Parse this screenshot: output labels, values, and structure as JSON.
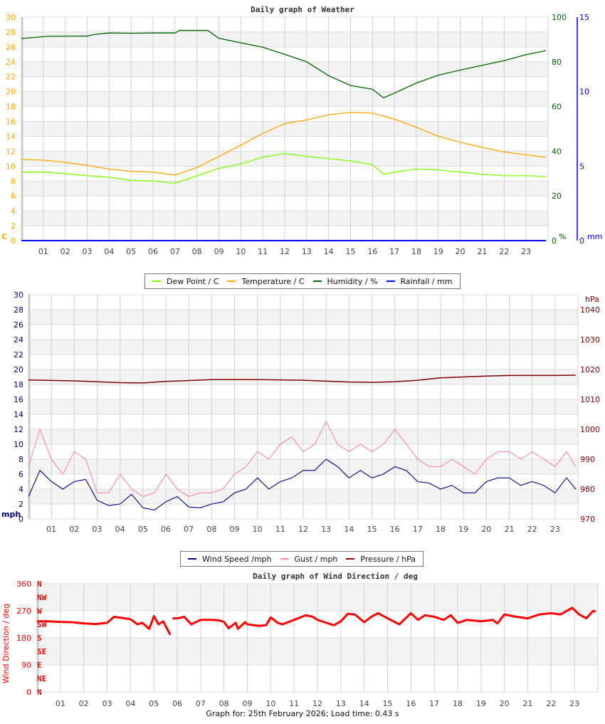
{
  "chart_data": [
    {
      "type": "line",
      "title": "Daily graph of Weather",
      "x_ticks": [
        "01",
        "02",
        "03",
        "04",
        "05",
        "06",
        "07",
        "08",
        "09",
        "10",
        "11",
        "12",
        "13",
        "14",
        "15",
        "16",
        "17",
        "18",
        "19",
        "20",
        "21",
        "22",
        "23"
      ],
      "xlim": [
        0,
        24
      ],
      "grid": true,
      "axes": {
        "left": {
          "unit": "C",
          "ylim": [
            0,
            30
          ],
          "ticks": [
            "0",
            "2",
            "4",
            "6",
            "8",
            "10",
            "12",
            "14",
            "16",
            "18",
            "20",
            "22",
            "24",
            "26",
            "28",
            "30"
          ],
          "color": "#ffa500"
        },
        "right": {
          "unit": "%",
          "ylim": [
            0,
            100
          ],
          "ticks": [
            "0",
            "20",
            "40",
            "60",
            "80",
            "100"
          ],
          "color": "#006400"
        },
        "right2": {
          "unit": "mm",
          "ylim": [
            0,
            15
          ],
          "ticks": [
            "0",
            "5",
            "10",
            "15"
          ],
          "color": "#0000ff"
        }
      },
      "legend": {
        "placement": "bottom",
        "entries": [
          "Dew Point / C",
          "Temperature / C",
          "Humidity / %",
          "Rainfall / mm"
        ]
      },
      "series": [
        {
          "name": "Dew Point / C",
          "axis": "left",
          "color": "#7cfc00",
          "x": [
            0,
            1,
            2,
            3,
            4,
            5,
            6,
            7,
            8,
            9,
            10,
            11,
            12,
            13,
            14,
            15,
            16,
            16.5,
            17,
            18,
            19,
            20,
            21,
            22,
            23,
            23.9
          ],
          "y": [
            9.2,
            9.2,
            9.0,
            8.7,
            8.5,
            8.1,
            8.0,
            7.7,
            8.7,
            9.7,
            10.3,
            11.2,
            11.7,
            11.3,
            11.0,
            10.7,
            10.2,
            8.9,
            9.2,
            9.6,
            9.5,
            9.2,
            8.9,
            8.7,
            8.7,
            8.6
          ]
        },
        {
          "name": "Temperature / C",
          "axis": "left",
          "color": "#ffa500",
          "x": [
            0,
            1,
            2,
            3,
            4,
            5,
            6,
            7,
            8,
            9,
            10,
            11,
            12,
            13,
            14,
            15,
            16,
            17,
            18,
            19,
            20,
            21,
            22,
            23,
            23.9
          ],
          "y": [
            10.9,
            10.8,
            10.5,
            10.1,
            9.6,
            9.3,
            9.2,
            8.8,
            9.8,
            11.3,
            12.8,
            14.4,
            15.7,
            16.2,
            16.9,
            17.2,
            17.1,
            16.3,
            15.2,
            14.0,
            13.2,
            12.5,
            11.9,
            11.5,
            11.2
          ]
        },
        {
          "name": "Humidity / %",
          "axis": "right",
          "color": "#006400",
          "x": [
            0,
            1.2,
            3,
            3.3,
            4,
            5,
            6,
            7,
            7.2,
            8.5,
            9,
            10,
            11,
            12,
            13,
            14,
            15,
            16,
            16.5,
            17,
            18,
            19,
            20,
            21,
            22,
            23,
            23.9
          ],
          "y": [
            90.4,
            91.4,
            91.5,
            92.2,
            92.9,
            92.8,
            92.9,
            92.9,
            94.0,
            94.0,
            90.5,
            88.5,
            86.5,
            83.3,
            80.0,
            73.8,
            69.4,
            67.7,
            63.9,
            66.0,
            70.5,
            74.0,
            76.3,
            78.4,
            80.5,
            83.2,
            85.0
          ]
        },
        {
          "name": "Rainfall / mm",
          "axis": "right2",
          "color": "#0000ff",
          "x": [
            0,
            23.9
          ],
          "y": [
            0,
            0
          ]
        }
      ]
    },
    {
      "type": "line",
      "title": "",
      "x_ticks": [
        "01",
        "02",
        "03",
        "04",
        "05",
        "06",
        "07",
        "08",
        "09",
        "10",
        "11",
        "12",
        "13",
        "14",
        "15",
        "16",
        "17",
        "18",
        "19",
        "20",
        "21",
        "22",
        "23"
      ],
      "xlim": [
        0,
        24
      ],
      "grid": true,
      "axes": {
        "left": {
          "unit": "mph",
          "ylim": [
            0,
            30
          ],
          "ticks": [
            "0",
            "2",
            "4",
            "6",
            "8",
            "10",
            "12",
            "14",
            "16",
            "18",
            "20",
            "22",
            "24",
            "26",
            "28",
            "30"
          ],
          "color": "#000080"
        },
        "right": {
          "unit": "hPa",
          "ylim": [
            970,
            1045
          ],
          "ticks": [
            "970",
            "980",
            "990",
            "1000",
            "1010",
            "1020",
            "1030",
            "1040"
          ],
          "color": "#800000"
        }
      },
      "legend": {
        "placement": "bottom",
        "entries": [
          "Wind Speed /mph",
          "Gust / mph",
          "Pressure / hPa"
        ]
      },
      "series": [
        {
          "name": "Gust / mph",
          "axis": "left",
          "color": "#ff88aa",
          "x": [
            0,
            0.5,
            1,
            1.5,
            2,
            2.5,
            3,
            3.5,
            4,
            4.5,
            5,
            5.5,
            6,
            6.5,
            7,
            7.5,
            8,
            8.5,
            9,
            9.5,
            10,
            10.5,
            11,
            11.5,
            12,
            12.5,
            13,
            13.5,
            14,
            14.5,
            15,
            15.5,
            16,
            16.5,
            17,
            17.5,
            18,
            18.5,
            19,
            19.5,
            20,
            20.5,
            21,
            21.5,
            22,
            22.5,
            23,
            23.5,
            23.9
          ],
          "y": [
            7,
            12,
            8,
            6,
            9,
            8,
            3.5,
            3.5,
            6,
            4,
            3,
            3.5,
            6,
            4,
            3,
            3.5,
            3.5,
            4,
            6,
            7,
            9,
            8,
            10,
            11,
            9,
            10,
            13,
            10,
            9,
            10,
            9,
            10,
            12,
            10,
            8,
            7,
            7,
            8,
            7,
            6,
            8,
            9,
            9,
            8,
            9,
            8,
            7,
            9,
            7
          ]
        },
        {
          "name": "Wind Speed /mph",
          "axis": "left",
          "color": "#000080",
          "x": [
            0,
            0.5,
            1,
            1.5,
            2,
            2.5,
            3,
            3.5,
            4,
            4.5,
            5,
            5.5,
            6,
            6.5,
            7,
            7.5,
            8,
            8.5,
            9,
            9.5,
            10,
            10.5,
            11,
            11.5,
            12,
            12.5,
            13,
            13.5,
            14,
            14.5,
            15,
            15.5,
            16,
            16.5,
            17,
            17.5,
            18,
            18.5,
            19,
            19.5,
            20,
            20.5,
            21,
            21.5,
            22,
            22.5,
            23,
            23.5,
            23.9
          ],
          "y": [
            3,
            6.5,
            5,
            4,
            5,
            5.3,
            2.5,
            1.8,
            2,
            3.3,
            1.5,
            1.2,
            2.3,
            3,
            1.6,
            1.5,
            2,
            2.3,
            3.5,
            4,
            5.5,
            4,
            5,
            5.5,
            6.5,
            6.5,
            8,
            7,
            5.5,
            6.5,
            5.5,
            6,
            7,
            6.5,
            5,
            4.8,
            4,
            4.5,
            3.5,
            3.5,
            5,
            5.5,
            5.5,
            4.5,
            5,
            4.5,
            3.5,
            5.5,
            4
          ]
        },
        {
          "name": "Pressure / hPa",
          "axis": "right",
          "color": "#800000",
          "x": [
            0,
            2,
            4,
            5,
            6,
            8,
            10,
            12,
            14,
            15,
            16,
            17,
            18,
            19,
            20,
            21,
            22,
            23,
            23.9
          ],
          "y": [
            1016.5,
            1016.2,
            1015.6,
            1015.5,
            1016.0,
            1016.6,
            1016.6,
            1016.4,
            1015.8,
            1015.7,
            1015.9,
            1016.4,
            1017.2,
            1017.5,
            1017.8,
            1018.0,
            1018.0,
            1018.0,
            1018.1
          ]
        }
      ]
    },
    {
      "type": "scatter",
      "title": "Daily graph of Wind Direction / deg",
      "ylabel": "Wind Direction / deg",
      "x_ticks": [
        "01",
        "02",
        "03",
        "04",
        "05",
        "06",
        "07",
        "08",
        "09",
        "10",
        "11",
        "12",
        "13",
        "14",
        "15",
        "16",
        "17",
        "18",
        "19",
        "20",
        "21",
        "22",
        "23"
      ],
      "xlim": [
        0,
        24
      ],
      "ylim": [
        0,
        360
      ],
      "y_ticks": [
        "0",
        "90",
        "180",
        "270",
        "360"
      ],
      "compass_labels": [
        "N",
        "NE",
        "E",
        "SE",
        "S",
        "SW",
        "W",
        "NW",
        "N"
      ],
      "grid": true,
      "color": "#ff0000",
      "series": [
        {
          "x": [
            0,
            0.5,
            1,
            1.5,
            2,
            2.5,
            3,
            3.3,
            3.5,
            4,
            4.3,
            4.5,
            4.8,
            5,
            5.2,
            5.4,
            5.7
          ],
          "y": [
            235,
            235,
            233,
            232,
            228,
            226,
            230,
            250,
            248,
            242,
            225,
            230,
            210,
            252,
            225,
            235,
            190
          ]
        },
        {
          "x": [
            5.8,
            6,
            6.3,
            6.6,
            7,
            7.5,
            7.8,
            8,
            8.2,
            8.5,
            8.6,
            8.9,
            9,
            9.5,
            9.8,
            10,
            10.3,
            10.5,
            11,
            11.5,
            11.8,
            12,
            12.3,
            12.7,
            13,
            13.3,
            13.6,
            14,
            14.3,
            14.6,
            15,
            15.5,
            16,
            16.3,
            16.6,
            17,
            17.4,
            17.7,
            18,
            18.4,
            19,
            19.5,
            19.7,
            20,
            20.5,
            21,
            21.5,
            22,
            22.4,
            22.9,
            23.2,
            23.5,
            23.8,
            23.9
          ],
          "y": [
            245,
            245,
            250,
            225,
            240,
            240,
            238,
            233,
            212,
            230,
            210,
            232,
            225,
            220,
            222,
            248,
            230,
            225,
            240,
            255,
            250,
            240,
            232,
            222,
            235,
            260,
            258,
            232,
            250,
            262,
            245,
            225,
            262,
            240,
            255,
            250,
            240,
            255,
            230,
            240,
            235,
            240,
            228,
            258,
            250,
            245,
            258,
            262,
            258,
            280,
            258,
            245,
            270,
            267
          ]
        }
      ]
    }
  ],
  "footer": {
    "text": "Graph for: 25th February 2026; Load time: 0.43 s"
  }
}
